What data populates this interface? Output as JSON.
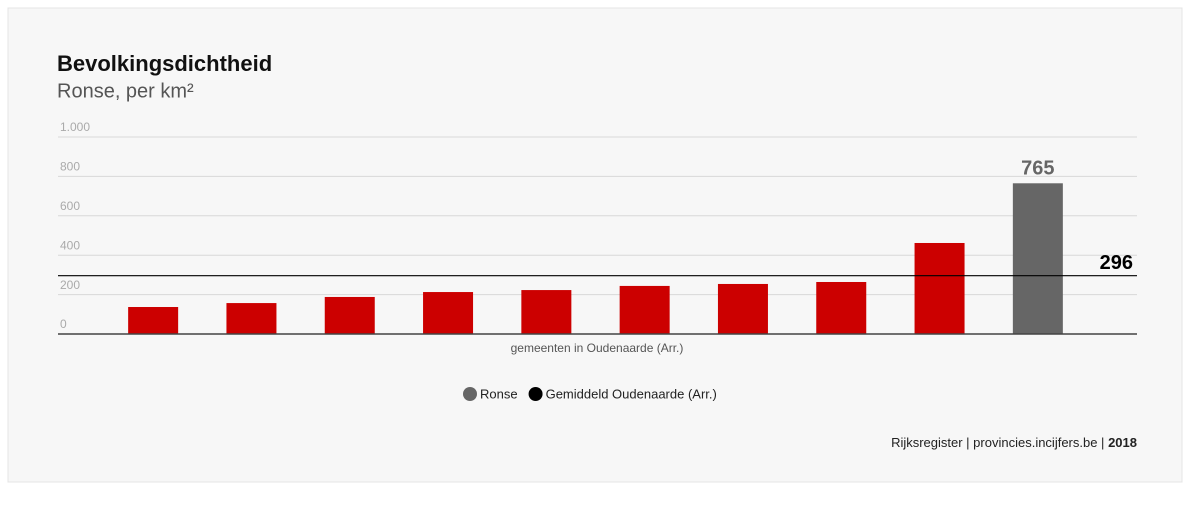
{
  "chart_data": {
    "type": "bar",
    "title": "Bevolkingsdichtheid",
    "subtitle": "Ronse, per km²",
    "x_label": "gemeenten in Oudenaarde (Arr.)",
    "categories": [
      null,
      null,
      null,
      null,
      null,
      null,
      null,
      null,
      null,
      null
    ],
    "values": [
      137,
      157,
      188,
      213,
      223,
      244,
      254,
      264,
      462,
      765
    ],
    "color": "#cc0000",
    "highlight": {
      "name": "Ronse",
      "index": 9,
      "color": "#666666"
    },
    "reference_line": {
      "name": "Gemiddeld Oudenaarde (Arr.)",
      "value": 296,
      "color": "#000000"
    },
    "ylim": [
      0,
      1000
    ],
    "yticks": [
      0,
      200,
      400,
      600,
      800,
      {
        "value": 1000,
        "label": "1.000"
      }
    ],
    "grid": true,
    "source": "Rijksregister | provincies.incijfers.be |",
    "year": "2018"
  }
}
